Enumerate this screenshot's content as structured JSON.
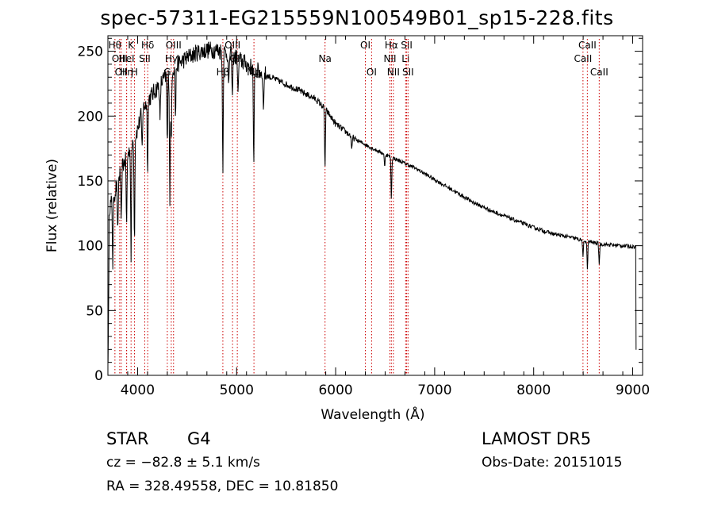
{
  "title": "spec-57311-EG215559N100549B01_sp15-228.fits",
  "info": {
    "class": "STAR",
    "subclass": "G4",
    "survey": "LAMOST DR5",
    "cz": "cz = −82.8 ± 5.1 km/s",
    "obs_date": "Obs-Date: 20151015",
    "coords": "RA = 328.49558, DEC =  10.81850"
  },
  "chart_data": {
    "type": "line",
    "xlabel": "Wavelength (Å)",
    "ylabel": "Flux (relative)",
    "xlim": [
      3700,
      9100
    ],
    "ylim": [
      0,
      262
    ],
    "xticks": [
      4000,
      5000,
      6000,
      7000,
      8000,
      9000
    ],
    "yticks": [
      0,
      50,
      100,
      150,
      200,
      250
    ],
    "continuum": [
      [
        3700,
        128
      ],
      [
        3750,
        135
      ],
      [
        3800,
        150
      ],
      [
        3850,
        162
      ],
      [
        3900,
        170
      ],
      [
        3950,
        180
      ],
      [
        4000,
        190
      ],
      [
        4050,
        205
      ],
      [
        4100,
        212
      ],
      [
        4200,
        222
      ],
      [
        4300,
        232
      ],
      [
        4400,
        240
      ],
      [
        4500,
        245
      ],
      [
        4600,
        249
      ],
      [
        4700,
        251
      ],
      [
        4800,
        251
      ],
      [
        4900,
        249
      ],
      [
        5000,
        245
      ],
      [
        5100,
        240
      ],
      [
        5200,
        235
      ],
      [
        5400,
        228
      ],
      [
        5600,
        221
      ],
      [
        5800,
        213
      ],
      [
        5900,
        205
      ],
      [
        6000,
        194
      ],
      [
        6200,
        182
      ],
      [
        6400,
        174
      ],
      [
        6600,
        167
      ],
      [
        6800,
        160
      ],
      [
        7000,
        151
      ],
      [
        7200,
        142
      ],
      [
        7400,
        133
      ],
      [
        7600,
        126
      ],
      [
        7800,
        120
      ],
      [
        8000,
        114
      ],
      [
        8200,
        109
      ],
      [
        8400,
        106
      ],
      [
        8500,
        104
      ],
      [
        8700,
        101
      ],
      [
        8900,
        100
      ],
      [
        9050,
        99
      ]
    ],
    "absorption_lines": [
      {
        "x": 3750,
        "depth": 50
      },
      {
        "x": 3800,
        "depth": 45
      },
      {
        "x": 3835,
        "depth": 45
      },
      {
        "x": 3889,
        "depth": 55
      },
      {
        "x": 3934,
        "depth": 85
      },
      {
        "x": 3968,
        "depth": 80
      },
      {
        "x": 4045,
        "depth": 30
      },
      {
        "x": 4101,
        "depth": 50
      },
      {
        "x": 4226,
        "depth": 30
      },
      {
        "x": 4300,
        "depth": 55
      },
      {
        "x": 4326,
        "depth": 100
      },
      {
        "x": 4340,
        "depth": 60
      },
      {
        "x": 4383,
        "depth": 40
      },
      {
        "x": 4861,
        "depth": 90
      },
      {
        "x": 4920,
        "depth": 30
      },
      {
        "x": 4957,
        "depth": 35
      },
      {
        "x": 5015,
        "depth": 30
      },
      {
        "x": 5173,
        "depth": 80
      },
      {
        "x": 5270,
        "depth": 30
      },
      {
        "x": 5893,
        "depth": 45
      },
      {
        "x": 6163,
        "depth": 12
      },
      {
        "x": 6495,
        "depth": 10
      },
      {
        "x": 6563,
        "depth": 32
      },
      {
        "x": 8498,
        "depth": 14
      },
      {
        "x": 8542,
        "depth": 22
      },
      {
        "x": 8662,
        "depth": 16
      }
    ],
    "line_markers": [
      {
        "x": 3771,
        "label": "Hθ",
        "row": 0
      },
      {
        "x": 3819,
        "label": "OIII",
        "row": 1
      },
      {
        "x": 3835,
        "label": "OII",
        "row": 2
      },
      {
        "x": 3889,
        "label": "Hη",
        "row": 2
      },
      {
        "x": 3889,
        "label": "HeI",
        "row": 1
      },
      {
        "x": 3934,
        "label": "K",
        "row": 0
      },
      {
        "x": 3968,
        "label": "H",
        "row": 2
      },
      {
        "x": 4072,
        "label": "SII",
        "row": 1
      },
      {
        "x": 4102,
        "label": "Hδ",
        "row": 0
      },
      {
        "x": 4300,
        "label": "G",
        "row": 2
      },
      {
        "x": 4340,
        "label": "Hγ",
        "row": 1
      },
      {
        "x": 4363,
        "label": "OIII",
        "row": 0
      },
      {
        "x": 4861,
        "label": "Hβ",
        "row": 2
      },
      {
        "x": 4959,
        "label": "OIII",
        "row": 0
      },
      {
        "x": 5007,
        "label": "OIII",
        "row": 1
      },
      {
        "x": 5175,
        "label": "Mg",
        "row": 2
      },
      {
        "x": 5893,
        "label": "Na",
        "row": 1
      },
      {
        "x": 6300,
        "label": "OI",
        "row": 0
      },
      {
        "x": 6363,
        "label": "OI",
        "row": 2
      },
      {
        "x": 6548,
        "label": "NII",
        "row": 1
      },
      {
        "x": 6563,
        "label": "Hα",
        "row": 0
      },
      {
        "x": 6583,
        "label": "NII",
        "row": 2
      },
      {
        "x": 6707,
        "label": "Li",
        "row": 1
      },
      {
        "x": 6717,
        "label": "SII",
        "row": 0
      },
      {
        "x": 6731,
        "label": "SII",
        "row": 2
      },
      {
        "x": 8498,
        "label": "CaII",
        "row": 1
      },
      {
        "x": 8542,
        "label": "CaII",
        "row": 0
      },
      {
        "x": 8662,
        "label": "CaII",
        "row": 2
      }
    ],
    "line_color": "#000000",
    "marker_color": "#cc0000",
    "grid": false
  }
}
